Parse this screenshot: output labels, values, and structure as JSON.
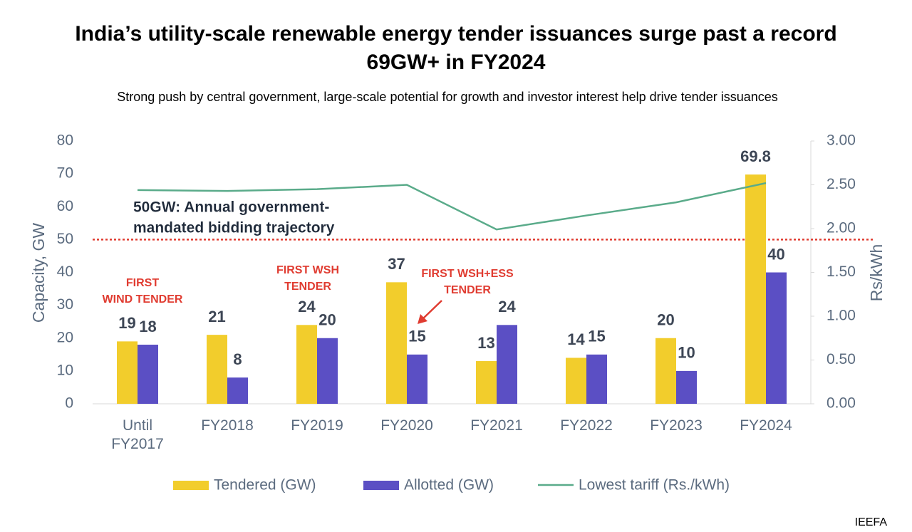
{
  "chart_data": {
    "type": "bar",
    "title": "India’s utility-scale renewable energy tender issuances surge past a record 69GW+ in FY2024",
    "subtitle": "Strong push by central government, large-scale potential for growth and investor interest help drive tender issuances",
    "y_label": "Capacity, GW",
    "y2_label": "Rs/kWh",
    "source": "IEEFA",
    "categories": [
      "Until FY2017",
      "FY2018",
      "FY2019",
      "FY2020",
      "FY2021",
      "FY2022",
      "FY2023",
      "FY2024"
    ],
    "series": [
      {
        "name": "Tendered (GW)",
        "color": "#f2cd2c",
        "values": [
          19,
          21,
          24,
          37,
          13,
          14,
          20,
          69.8
        ]
      },
      {
        "name": "Allotted (GW)",
        "color": "#5b4fc4",
        "values": [
          18,
          8,
          20,
          15,
          24,
          15,
          10,
          40
        ]
      },
      {
        "name": "Lowest tariff (Rs./kWh)",
        "color": "#5aab8a",
        "type": "line",
        "axis": "y2",
        "values": [
          2.44,
          2.43,
          2.45,
          2.5,
          1.99,
          2.15,
          2.3,
          2.52
        ]
      }
    ],
    "ylim": [
      0,
      80
    ],
    "yticks": [
      0,
      10,
      20,
      30,
      40,
      50,
      60,
      70,
      80
    ],
    "y2lim": [
      0,
      3
    ],
    "y2ticks": [
      {
        "value": 0,
        "label": "0.00"
      },
      {
        "value": 0.5,
        "label": "0.50"
      },
      {
        "value": 1,
        "label": "1.00"
      },
      {
        "value": 1.5,
        "label": "1.50"
      },
      {
        "value": 2,
        "label": "2.00"
      },
      {
        "value": 2.5,
        "label": "2.50"
      },
      {
        "value": 3,
        "label": "3.00"
      }
    ],
    "reference_line": {
      "value": 50,
      "color": "#e03c31",
      "lines": [
        "50GW: Annual government-",
        "mandated bidding trajectory"
      ]
    },
    "annotations": [
      {
        "lines": [
          "FIRST",
          "WIND TENDER"
        ]
      },
      {
        "lines": [
          "FIRST WSH",
          "TENDER"
        ]
      },
      {
        "lines": [
          "FIRST WSH+ESS",
          "TENDER"
        ]
      }
    ]
  }
}
